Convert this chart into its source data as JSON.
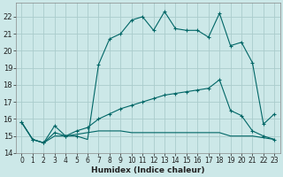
{
  "title": "",
  "xlabel": "Humidex (Indice chaleur)",
  "bg_color": "#cce8e8",
  "grid_color": "#aacccc",
  "line_color": "#006666",
  "xlim": [
    -0.5,
    23.5
  ],
  "ylim": [
    14.0,
    22.8
  ],
  "yticks": [
    14,
    15,
    16,
    17,
    18,
    19,
    20,
    21,
    22
  ],
  "xticks": [
    0,
    1,
    2,
    3,
    4,
    5,
    6,
    7,
    8,
    9,
    10,
    11,
    12,
    13,
    14,
    15,
    16,
    17,
    18,
    19,
    20,
    21,
    22,
    23
  ],
  "series1_x": [
    0,
    1,
    2,
    3,
    4,
    5,
    6,
    7,
    8,
    9,
    10,
    11,
    12,
    13,
    14,
    15,
    16,
    17,
    18,
    19,
    20,
    21,
    22,
    23
  ],
  "series1_y": [
    15.8,
    14.8,
    14.6,
    15.6,
    15.0,
    15.0,
    14.8,
    19.2,
    20.7,
    21.0,
    21.8,
    22.0,
    21.2,
    22.3,
    21.3,
    21.2,
    21.2,
    20.8,
    22.2,
    20.3,
    20.5,
    19.3,
    15.7,
    16.3
  ],
  "series2_x": [
    0,
    1,
    2,
    3,
    4,
    5,
    6,
    7,
    8,
    9,
    10,
    11,
    12,
    13,
    14,
    15,
    16,
    17,
    18,
    19,
    20,
    21,
    22,
    23
  ],
  "series2_y": [
    15.8,
    14.8,
    14.6,
    15.2,
    15.0,
    15.3,
    15.5,
    16.0,
    16.3,
    16.6,
    16.8,
    17.0,
    17.2,
    17.4,
    17.5,
    17.6,
    17.7,
    17.8,
    18.3,
    16.5,
    16.2,
    15.3,
    15.0,
    14.8
  ],
  "series3_x": [
    0,
    1,
    2,
    3,
    4,
    5,
    6,
    7,
    8,
    9,
    10,
    11,
    12,
    13,
    14,
    15,
    16,
    17,
    18,
    19,
    20,
    21,
    22,
    23
  ],
  "series3_y": [
    15.8,
    14.8,
    14.6,
    15.0,
    15.0,
    15.1,
    15.2,
    15.3,
    15.3,
    15.3,
    15.2,
    15.2,
    15.2,
    15.2,
    15.2,
    15.2,
    15.2,
    15.2,
    15.2,
    15.0,
    15.0,
    15.0,
    14.9,
    14.8
  ],
  "markers1_x": [
    0,
    1,
    2,
    3,
    4,
    5,
    7,
    8,
    9,
    10,
    11,
    12,
    13,
    14,
    15,
    16,
    17,
    18,
    19,
    20,
    21,
    22,
    23
  ],
  "markers1_y": [
    15.8,
    14.8,
    14.6,
    15.6,
    15.0,
    15.0,
    19.2,
    20.7,
    21.0,
    21.8,
    22.0,
    21.2,
    22.3,
    21.3,
    21.2,
    21.2,
    20.8,
    22.2,
    20.3,
    20.5,
    19.3,
    15.7,
    16.3
  ],
  "markers2_x": [
    0,
    1,
    2,
    3,
    4,
    5,
    6,
    7,
    8,
    9,
    10,
    11,
    12,
    13,
    14,
    15,
    16,
    17,
    18,
    19,
    20,
    21,
    22,
    23
  ],
  "markers2_y": [
    15.8,
    14.8,
    14.6,
    15.2,
    15.0,
    15.3,
    15.5,
    16.0,
    16.3,
    16.6,
    16.8,
    17.0,
    17.2,
    17.4,
    17.5,
    17.6,
    17.7,
    17.8,
    18.3,
    16.5,
    16.2,
    15.3,
    15.0,
    14.8
  ]
}
